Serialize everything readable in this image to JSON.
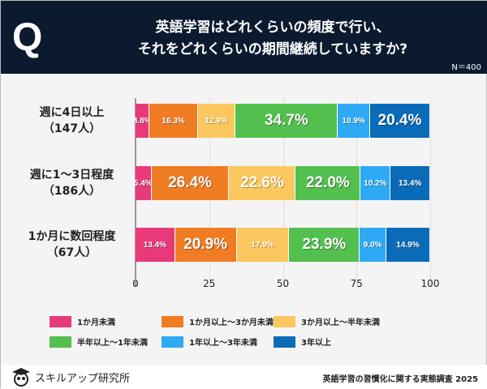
{
  "header": {
    "q": "Q",
    "title_line1": "英語学習はどれくらいの頻度で行い、",
    "title_line2": "それをどれくらいの期間継続していますか?",
    "n": "N＝400"
  },
  "chart_data": {
    "type": "bar",
    "orientation": "horizontal",
    "stacked": true,
    "categories": [
      "週に4日以上\n（147人）",
      "週に1～3日程度\n（186人）",
      "1か月に数回程度\n（67人）"
    ],
    "category_lines": [
      [
        "週に4日以上",
        "（147人）"
      ],
      [
        "週に1～3日程度",
        "（186人）"
      ],
      [
        "1か月に数回程度",
        "（67人）"
      ]
    ],
    "series": [
      {
        "name": "1か月未満",
        "color": "#e8397a",
        "values": [
          4.8,
          5.4,
          13.4
        ]
      },
      {
        "name": "1か月以上～3か月未満",
        "color": "#f07c24",
        "values": [
          16.3,
          26.4,
          20.9
        ]
      },
      {
        "name": "3か月以上～半年未満",
        "color": "#fbc75e",
        "values": [
          12.9,
          22.6,
          17.9
        ]
      },
      {
        "name": "半年以上～1年未満",
        "color": "#52bf4f",
        "values": [
          34.7,
          22.0,
          23.9
        ]
      },
      {
        "name": "1年以上～3年未満",
        "color": "#2eaaf5",
        "values": [
          10.9,
          10.2,
          9.0
        ]
      },
      {
        "name": "3年以上",
        "color": "#0a6bb8",
        "values": [
          20.4,
          13.4,
          14.9
        ]
      }
    ],
    "xlim": [
      0,
      100
    ],
    "xticks": [
      0,
      25,
      50,
      75,
      100
    ],
    "grid": true,
    "legend_position": "bottom"
  },
  "footer": {
    "logo": "スキルアップ研究所",
    "source": "英語学習の習慣化に関する実態調査 2025"
  }
}
